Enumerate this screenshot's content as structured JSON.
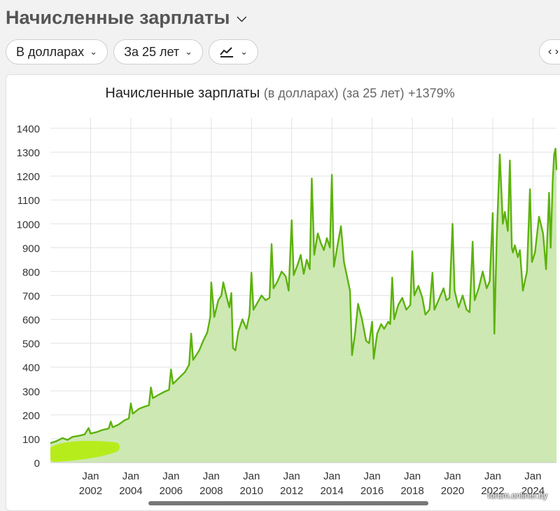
{
  "header": {
    "title": "Начисленные зарплаты",
    "title_icon": "chevron-down-icon"
  },
  "filters": {
    "currency": "В долларах",
    "period": "За 25 лет",
    "chart_type_icon": "line-chart-icon",
    "nav_icon": "chevron-left-right-icon"
  },
  "chart_title": {
    "main": "Начисленные зарплаты",
    "unit": "(в долларах)",
    "period": "(за 25 лет)",
    "change": "+1379%"
  },
  "watermark": "forum.onliner.by",
  "colors": {
    "line": "#5cb20c",
    "fill": "#cde8b2",
    "grid": "#e3e3e3",
    "scribble": "#b7ec1c"
  },
  "chart_data": {
    "type": "area",
    "title": "",
    "ylim": [
      0,
      1400
    ],
    "yticks": [
      0,
      100,
      200,
      300,
      400,
      500,
      600,
      700,
      800,
      900,
      1000,
      1100,
      1200,
      1300,
      1400
    ],
    "xlim": [
      2000.0,
      2025.17
    ],
    "xticks": [
      2002,
      2004,
      2006,
      2008,
      2010,
      2012,
      2014,
      2016,
      2018,
      2020,
      2022,
      2024
    ],
    "xtick_top_label": "Jan",
    "grid": true,
    "points": [
      [
        2000.0,
        82
      ],
      [
        2000.3,
        90
      ],
      [
        2000.6,
        103
      ],
      [
        2000.85,
        95
      ],
      [
        2001.1,
        108
      ],
      [
        2001.4,
        112
      ],
      [
        2001.7,
        118
      ],
      [
        2001.9,
        145
      ],
      [
        2002.0,
        122
      ],
      [
        2002.3,
        128
      ],
      [
        2002.6,
        137
      ],
      [
        2002.9,
        143
      ],
      [
        2003.0,
        172
      ],
      [
        2003.1,
        148
      ],
      [
        2003.4,
        160
      ],
      [
        2003.7,
        178
      ],
      [
        2003.9,
        185
      ],
      [
        2004.0,
        248
      ],
      [
        2004.1,
        205
      ],
      [
        2004.4,
        225
      ],
      [
        2004.7,
        235
      ],
      [
        2004.9,
        240
      ],
      [
        2005.0,
        315
      ],
      [
        2005.1,
        270
      ],
      [
        2005.4,
        285
      ],
      [
        2005.7,
        298
      ],
      [
        2005.9,
        305
      ],
      [
        2006.0,
        390
      ],
      [
        2006.1,
        330
      ],
      [
        2006.4,
        355
      ],
      [
        2006.7,
        380
      ],
      [
        2006.9,
        410
      ],
      [
        2007.0,
        540
      ],
      [
        2007.1,
        430
      ],
      [
        2007.4,
        470
      ],
      [
        2007.6,
        510
      ],
      [
        2007.8,
        545
      ],
      [
        2007.95,
        610
      ],
      [
        2008.0,
        755
      ],
      [
        2008.15,
        610
      ],
      [
        2008.35,
        680
      ],
      [
        2008.5,
        700
      ],
      [
        2008.6,
        755
      ],
      [
        2008.75,
        700
      ],
      [
        2008.9,
        650
      ],
      [
        2009.0,
        710
      ],
      [
        2009.08,
        480
      ],
      [
        2009.2,
        470
      ],
      [
        2009.35,
        550
      ],
      [
        2009.55,
        600
      ],
      [
        2009.75,
        560
      ],
      [
        2009.9,
        620
      ],
      [
        2010.0,
        795
      ],
      [
        2010.1,
        640
      ],
      [
        2010.3,
        670
      ],
      [
        2010.5,
        700
      ],
      [
        2010.7,
        680
      ],
      [
        2010.9,
        690
      ],
      [
        2011.0,
        915
      ],
      [
        2011.1,
        730
      ],
      [
        2011.3,
        760
      ],
      [
        2011.5,
        800
      ],
      [
        2011.7,
        780
      ],
      [
        2011.85,
        720
      ],
      [
        2012.0,
        1015
      ],
      [
        2012.1,
        785
      ],
      [
        2012.3,
        830
      ],
      [
        2012.45,
        870
      ],
      [
        2012.6,
        790
      ],
      [
        2012.75,
        850
      ],
      [
        2012.9,
        810
      ],
      [
        2013.0,
        1190
      ],
      [
        2013.12,
        870
      ],
      [
        2013.3,
        960
      ],
      [
        2013.45,
        920
      ],
      [
        2013.6,
        890
      ],
      [
        2013.75,
        940
      ],
      [
        2013.9,
        900
      ],
      [
        2014.0,
        1205
      ],
      [
        2014.1,
        820
      ],
      [
        2014.3,
        920
      ],
      [
        2014.45,
        990
      ],
      [
        2014.6,
        840
      ],
      [
        2014.75,
        780
      ],
      [
        2014.9,
        720
      ],
      [
        2015.0,
        450
      ],
      [
        2015.15,
        540
      ],
      [
        2015.3,
        665
      ],
      [
        2015.5,
        600
      ],
      [
        2015.7,
        510
      ],
      [
        2015.85,
        500
      ],
      [
        2016.0,
        590
      ],
      [
        2016.08,
        435
      ],
      [
        2016.25,
        540
      ],
      [
        2016.45,
        580
      ],
      [
        2016.6,
        560
      ],
      [
        2016.8,
        590
      ],
      [
        2016.9,
        580
      ],
      [
        2017.0,
        775
      ],
      [
        2017.1,
        600
      ],
      [
        2017.3,
        660
      ],
      [
        2017.5,
        690
      ],
      [
        2017.7,
        640
      ],
      [
        2017.9,
        660
      ],
      [
        2018.0,
        885
      ],
      [
        2018.1,
        700
      ],
      [
        2018.3,
        740
      ],
      [
        2018.5,
        690
      ],
      [
        2018.65,
        620
      ],
      [
        2018.85,
        640
      ],
      [
        2019.0,
        795
      ],
      [
        2019.1,
        640
      ],
      [
        2019.3,
        680
      ],
      [
        2019.55,
        730
      ],
      [
        2019.7,
        680
      ],
      [
        2019.85,
        690
      ],
      [
        2020.0,
        1000
      ],
      [
        2020.1,
        720
      ],
      [
        2020.3,
        650
      ],
      [
        2020.5,
        700
      ],
      [
        2020.7,
        640
      ],
      [
        2020.85,
        630
      ],
      [
        2021.0,
        925
      ],
      [
        2021.1,
        680
      ],
      [
        2021.3,
        730
      ],
      [
        2021.5,
        800
      ],
      [
        2021.7,
        730
      ],
      [
        2021.85,
        760
      ],
      [
        2022.0,
        1045
      ],
      [
        2022.08,
        540
      ],
      [
        2022.2,
        950
      ],
      [
        2022.35,
        1290
      ],
      [
        2022.5,
        1000
      ],
      [
        2022.6,
        1050
      ],
      [
        2022.75,
        970
      ],
      [
        2022.85,
        1265
      ],
      [
        2022.95,
        900
      ],
      [
        2023.0,
        880
      ],
      [
        2023.1,
        910
      ],
      [
        2023.25,
        860
      ],
      [
        2023.35,
        890
      ],
      [
        2023.5,
        720
      ],
      [
        2023.7,
        800
      ],
      [
        2023.85,
        1145
      ],
      [
        2023.95,
        840
      ],
      [
        2024.1,
        880
      ],
      [
        2024.3,
        1030
      ],
      [
        2024.5,
        960
      ],
      [
        2024.65,
        810
      ],
      [
        2024.8,
        1130
      ],
      [
        2024.88,
        900
      ],
      [
        2024.98,
        1175
      ],
      [
        2025.05,
        1290
      ],
      [
        2025.12,
        1315
      ],
      [
        2025.17,
        1225
      ]
    ]
  }
}
